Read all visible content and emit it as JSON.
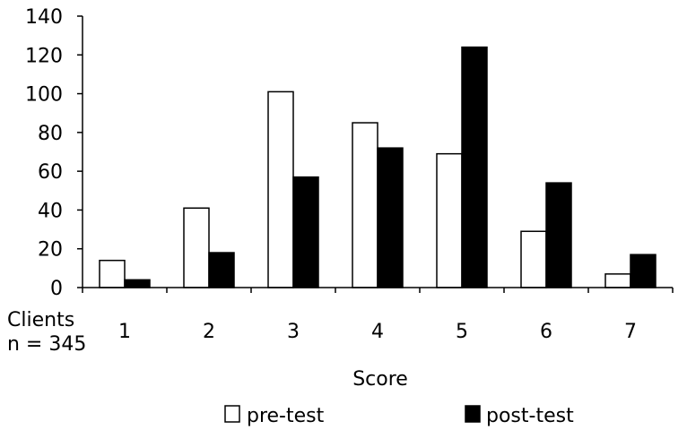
{
  "chart_data": {
    "type": "bar",
    "categories": [
      "1",
      "2",
      "3",
      "4",
      "5",
      "6",
      "7"
    ],
    "series": [
      {
        "name": "pre-test",
        "values": [
          14,
          41,
          101,
          85,
          69,
          29,
          7
        ],
        "fill": "#ffffff",
        "stroke": "#000000"
      },
      {
        "name": "post-test",
        "values": [
          4,
          18,
          57,
          72,
          124,
          54,
          17
        ],
        "fill": "#000000",
        "stroke": "#000000"
      }
    ],
    "title": "",
    "xlabel": "Score",
    "ylabel": "",
    "ylim": [
      0,
      140
    ],
    "yticks": [
      0,
      20,
      40,
      60,
      80,
      100,
      120,
      140
    ],
    "grid": false,
    "legend_position": "bottom",
    "annotation": {
      "line1": "Clients",
      "line2": "n = 345"
    }
  }
}
